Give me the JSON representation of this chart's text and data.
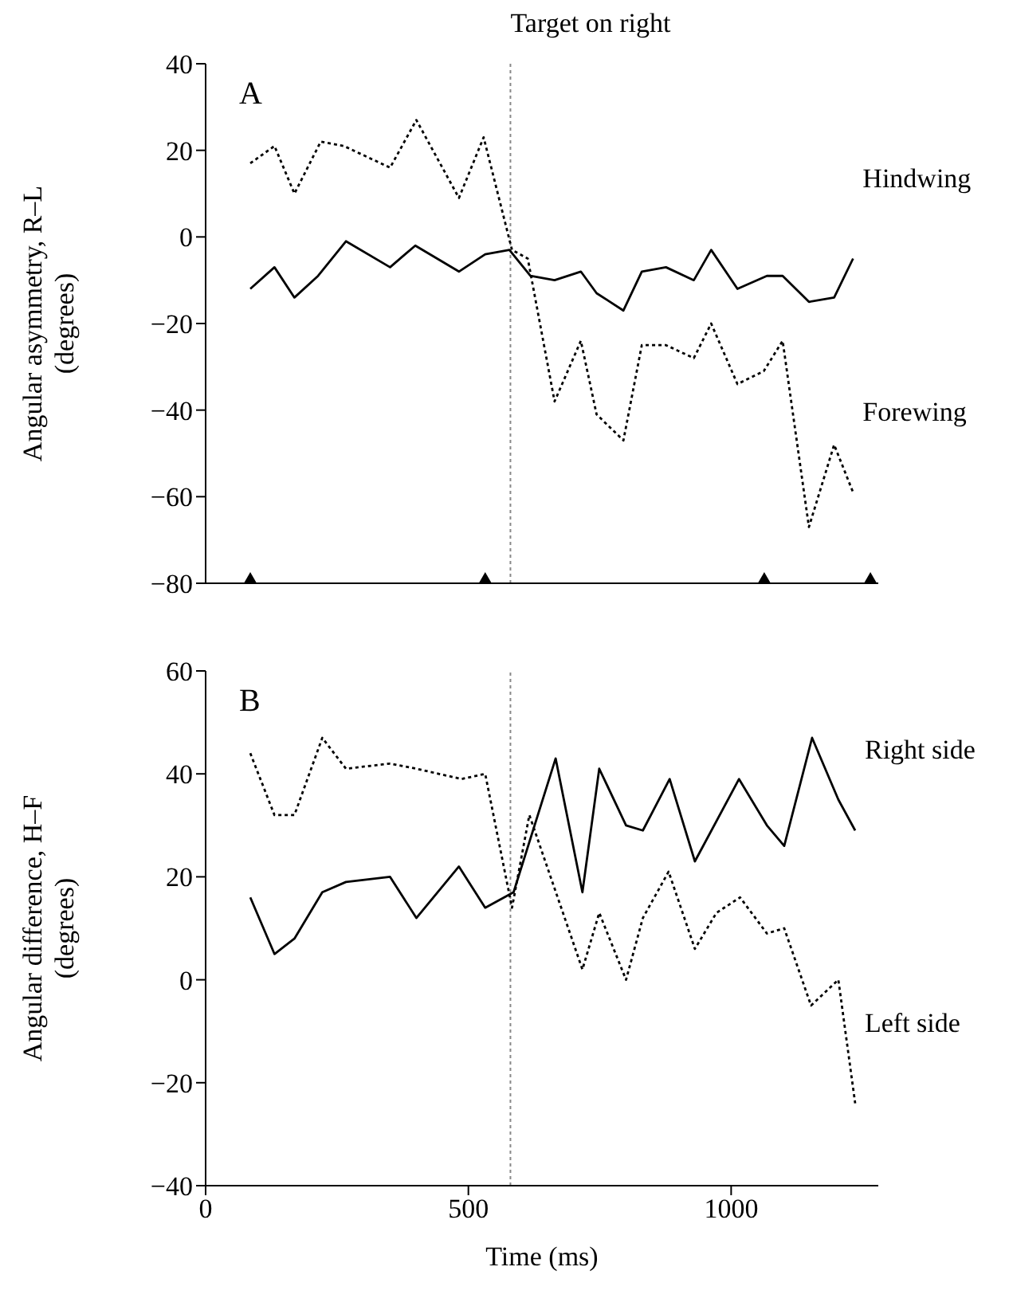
{
  "chart_data": [
    {
      "type": "line",
      "annotations": [
        "A"
      ],
      "ylabel": "Angular asymmetry, R–L\n(degrees)",
      "xlim": [
        0,
        1280
      ],
      "xticks": [
        0,
        500,
        1000
      ],
      "ylim": [
        -80,
        40
      ],
      "yticks": [
        40,
        20,
        0,
        -20,
        -40,
        -60,
        -80
      ],
      "tick_labels": "y",
      "marker": "none",
      "ref_lines": [
        {
          "axis": "x",
          "value": 580,
          "label": "Target on right",
          "color": "#888888",
          "line_style": "dotted"
        }
      ],
      "series": [
        {
          "name": "Hindwing",
          "color": "#000000",
          "line_style": "solid",
          "x": [
            85,
            131,
            169,
            214,
            267,
            351,
            399,
            482,
            532,
            578,
            618,
            664,
            714,
            744,
            795,
            830,
            876,
            929,
            962,
            1012,
            1068,
            1098,
            1148,
            1196,
            1232
          ],
          "values": [
            -12,
            -7,
            -14,
            -9,
            -1,
            -7,
            -2,
            -8,
            -4,
            -3,
            -9,
            -10,
            -8,
            -13,
            -17,
            -8,
            -7,
            -10,
            -3,
            -12,
            -9,
            -9,
            -15,
            -14,
            -5
          ]
        },
        {
          "name": "Forewing",
          "color": "#000000",
          "line_style": "dotted",
          "x": [
            85,
            131,
            169,
            219,
            263,
            351,
            401,
            482,
            529,
            583,
            613,
            664,
            714,
            744,
            795,
            830,
            876,
            929,
            962,
            1012,
            1062,
            1098,
            1148,
            1196,
            1232
          ],
          "values": [
            17,
            21,
            10,
            22,
            21,
            16,
            27,
            9,
            23,
            -3,
            -5,
            -38,
            -24,
            -41,
            -47,
            -25,
            -25,
            -28,
            -20,
            -34,
            -31,
            -24,
            -67,
            -48,
            -59
          ]
        },
        {
          "type": "scatter",
          "marker": "triangle",
          "color": "#000000",
          "x": [
            85,
            532,
            1063,
            1265
          ],
          "values": [
            -80,
            -80,
            -80,
            -80
          ]
        }
      ]
    },
    {
      "type": "line",
      "annotations": [
        "B"
      ],
      "xlabel": "Time (ms)",
      "ylabel": "Angular difference, H–F\n(degrees)",
      "xlim": [
        0,
        1280
      ],
      "xticks": [
        0,
        500,
        1000
      ],
      "ylim": [
        -40,
        60
      ],
      "yticks": [
        60,
        40,
        20,
        0,
        -20,
        -40
      ],
      "marker": "none",
      "ref_lines": [
        {
          "axis": "x",
          "value": 580,
          "color": "#888888",
          "line_style": "dotted"
        }
      ],
      "series": [
        {
          "name": "Right side",
          "color": "#000000",
          "line_style": "solid",
          "x": [
            85,
            131,
            169,
            222,
            267,
            351,
            401,
            482,
            532,
            586,
            666,
            717,
            749,
            800,
            832,
            883,
            931,
            1015,
            1068,
            1101,
            1154,
            1204,
            1236
          ],
          "values": [
            16,
            5,
            8,
            17,
            19,
            20,
            12,
            22,
            14,
            17,
            43,
            17,
            41,
            30,
            29,
            39,
            23,
            39,
            30,
            26,
            47,
            35,
            29
          ]
        },
        {
          "name": "Left side",
          "color": "#000000",
          "line_style": "dotted",
          "x": [
            85,
            131,
            169,
            222,
            267,
            351,
            401,
            487,
            532,
            583,
            616,
            717,
            749,
            800,
            832,
            881,
            931,
            972,
            1017,
            1068,
            1101,
            1152,
            1204,
            1236
          ],
          "values": [
            44,
            32,
            32,
            47,
            41,
            42,
            41,
            39,
            40,
            14,
            32,
            2,
            13,
            0,
            12,
            21,
            6,
            13,
            16,
            9,
            10,
            -5,
            0,
            -24
          ]
        }
      ]
    }
  ]
}
